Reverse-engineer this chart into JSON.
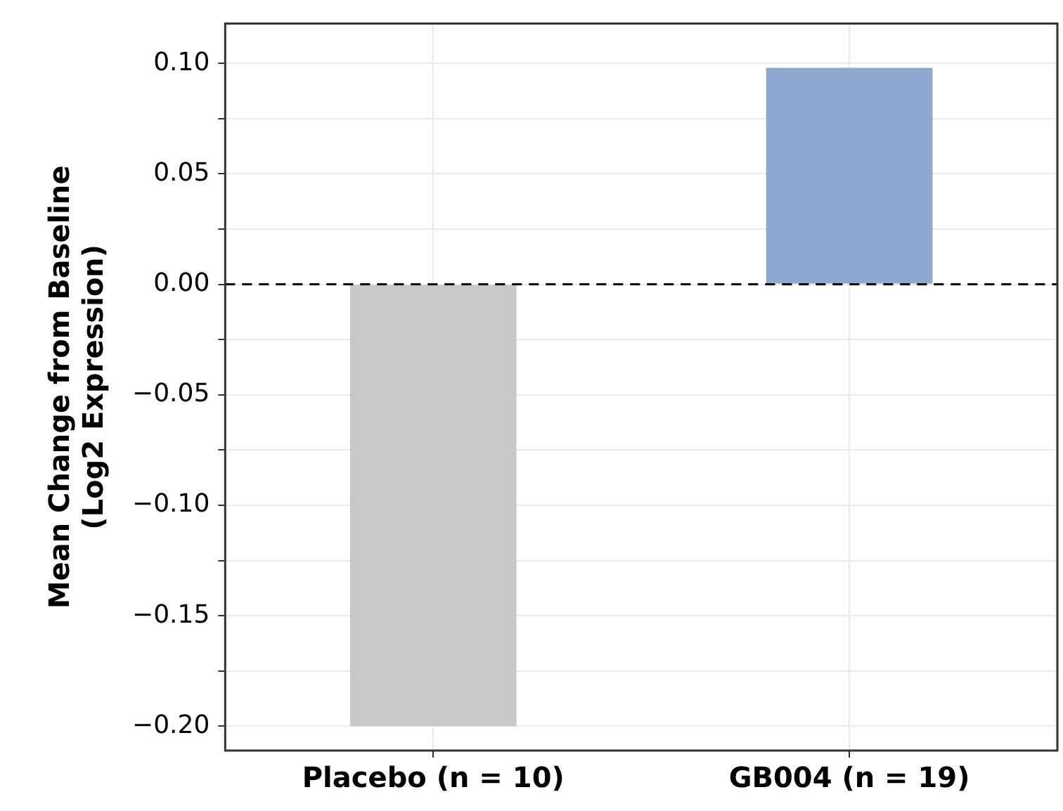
{
  "chart_data": {
    "type": "bar",
    "ylabel": "Mean Change from Baseline\n(Log2 Expression)",
    "categories": [
      "Placebo (n = 10)",
      "GB004 (n = 19)"
    ],
    "values": [
      -0.2,
      0.098
    ],
    "colors": [
      "#c8c8c8",
      "#8ea9d0"
    ],
    "ylim": [
      -0.211,
      0.118
    ],
    "yticks": [
      {
        "value": -0.2,
        "label": "−0.20"
      },
      {
        "value": -0.175,
        "label": null
      },
      {
        "value": -0.15,
        "label": "−0.15"
      },
      {
        "value": -0.125,
        "label": null
      },
      {
        "value": -0.1,
        "label": "−0.10"
      },
      {
        "value": -0.075,
        "label": null
      },
      {
        "value": -0.05,
        "label": "−0.05"
      },
      {
        "value": -0.025,
        "label": null
      },
      {
        "value": 0,
        "label": "0.00"
      },
      {
        "value": 0.025,
        "label": null
      },
      {
        "value": 0.05,
        "label": "0.05"
      },
      {
        "value": 0.075,
        "label": null
      },
      {
        "value": 0.1,
        "label": "0.10"
      }
    ],
    "ref_lines": [
      {
        "axis": "y",
        "value": 0,
        "color": "#000000",
        "line_style": "dashed"
      }
    ],
    "grid": true,
    "legend": false
  }
}
